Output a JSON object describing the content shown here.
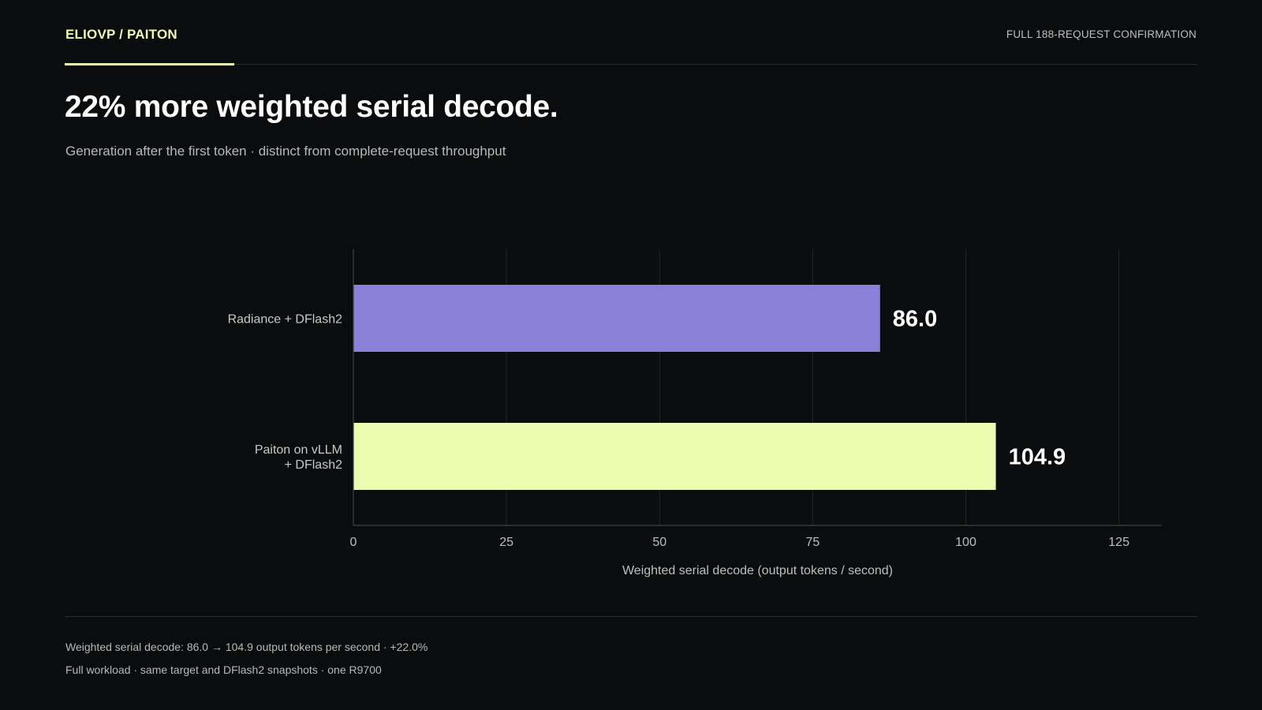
{
  "header": {
    "brand": "ELIOVP / PAITON",
    "right_label": "FULL 188-REQUEST CONFIRMATION"
  },
  "title": "22% more weighted serial decode.",
  "subtitle": "Generation after the first token · distinct from complete-request throughput",
  "chart_data": {
    "type": "bar",
    "orientation": "horizontal",
    "categories": [
      [
        "Radiance + DFlash2"
      ],
      [
        "Paiton on vLLM",
        "+ DFlash2"
      ]
    ],
    "values": [
      86.0,
      104.9
    ],
    "value_labels": [
      "86.0",
      "104.9"
    ],
    "colors": [
      "#8b7fd8",
      "#edfcb0"
    ],
    "xlabel": "Weighted serial decode (output tokens / second)",
    "xlim": [
      0,
      132
    ],
    "xticks": [
      0,
      25,
      50,
      75,
      100,
      125
    ],
    "grid": true
  },
  "footer": {
    "note1": "Weighted serial decode: 86.0 → 104.9 output tokens per second · +22.0%",
    "note2": "Full workload · same target and DFlash2 snapshots · one R9700"
  }
}
